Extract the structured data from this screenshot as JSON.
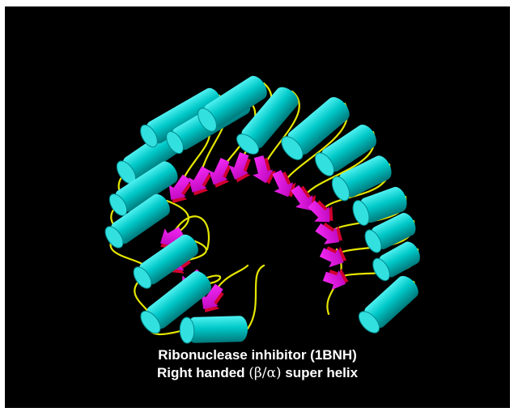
{
  "figure": {
    "caption_line1": "Ribonuclease inhibitor (1BNH)",
    "caption_line2_prefix": "Right handed ",
    "caption_line2_greek": "(β/α)",
    "caption_line2_suffix": " super helix"
  },
  "colors": {
    "background": "#000000",
    "helix": "#00c8c8",
    "helix_cap": "#33e0e0",
    "helix_shade": "#008a8c",
    "strand": "#e000e0",
    "strand_shade": "#d00030",
    "loop": "#e6e600"
  },
  "structure": {
    "helix_count": 16,
    "strand_count": 15
  }
}
